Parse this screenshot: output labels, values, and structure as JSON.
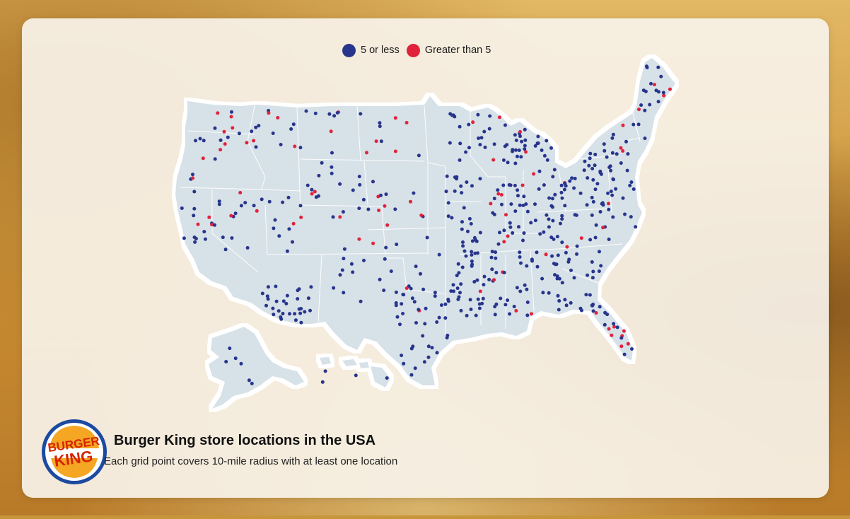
{
  "legend": {
    "items": [
      {
        "label": "5 or less",
        "color": "#27358c"
      },
      {
        "label": "Greater than 5",
        "color": "#e1223b"
      }
    ]
  },
  "footer": {
    "title": "Burger King store locations in the USA",
    "subtitle": "Each grid point covers 10-mile radius with at least one location"
  },
  "logo": {
    "line1": "BURGER",
    "line2": "KING",
    "colors": {
      "bun": "#f5a623",
      "text": "#d62300",
      "ring": "#1b4aa0"
    }
  },
  "colors": {
    "land": "#d7e1e8",
    "borders": "#ffffff",
    "low": "#27358c",
    "high": "#e1223b"
  }
}
